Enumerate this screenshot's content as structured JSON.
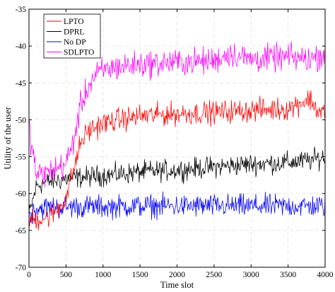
{
  "chart_data": {
    "type": "line",
    "title": "",
    "xlabel": "Time slot",
    "ylabel": "Utility of the user",
    "xlim": [
      0,
      4000
    ],
    "ylim": [
      -70,
      -35
    ],
    "xticks": [
      0,
      500,
      1000,
      1500,
      2000,
      2500,
      3000,
      3500,
      4000
    ],
    "yticks": [
      -70,
      -65,
      -60,
      -55,
      -50,
      -45,
      -40,
      -35
    ],
    "grid": true,
    "legend_position": "top-left",
    "series": [
      {
        "name": "LPTO",
        "color": "#ff0000",
        "x": [
          0,
          100,
          200,
          300,
          400,
          500,
          600,
          700,
          800,
          1000,
          1200,
          1500,
          1800,
          2000,
          2500,
          3000,
          3500,
          3700,
          3800,
          3900,
          4000
        ],
        "y": [
          -63.5,
          -63.5,
          -63.3,
          -63,
          -62,
          -60.5,
          -57,
          -53,
          -51.5,
          -50.5,
          -50,
          -49.5,
          -49.3,
          -49.2,
          -49,
          -48.7,
          -48.5,
          -47.5,
          -47.2,
          -48.8,
          -49
        ]
      },
      {
        "name": "DPRL",
        "color": "#000000",
        "x": [
          0,
          100,
          200,
          300,
          400,
          500,
          800,
          1200,
          1600,
          2000,
          2500,
          3000,
          3500,
          3800,
          4000
        ],
        "y": [
          -63,
          -59,
          -58.5,
          -58.3,
          -58.2,
          -58,
          -57.7,
          -57.4,
          -57,
          -56.8,
          -56.4,
          -56,
          -55.8,
          -55.5,
          -55
        ]
      },
      {
        "name": "No DP",
        "color": "#0000ff",
        "x": [
          0,
          100,
          500,
          1000,
          1500,
          2000,
          2500,
          3000,
          3500,
          4000
        ],
        "y": [
          -63,
          -62,
          -61.8,
          -61.8,
          -61.7,
          -61.7,
          -61.7,
          -61.7,
          -61.7,
          -61.7
        ]
      },
      {
        "name": "SDLPTO",
        "color": "#ff00ff",
        "x": [
          0,
          100,
          200,
          300,
          400,
          500,
          600,
          700,
          800,
          900,
          1000,
          1200,
          1500,
          2000,
          2500,
          2700,
          3000,
          3500,
          3800,
          4000
        ],
        "y": [
          -51,
          -57.5,
          -57.3,
          -57,
          -56.5,
          -56,
          -53,
          -48,
          -45.5,
          -44,
          -43.3,
          -42.8,
          -42.5,
          -42.2,
          -42,
          -41,
          -41.8,
          -41.5,
          -41.8,
          -41
        ]
      }
    ]
  }
}
